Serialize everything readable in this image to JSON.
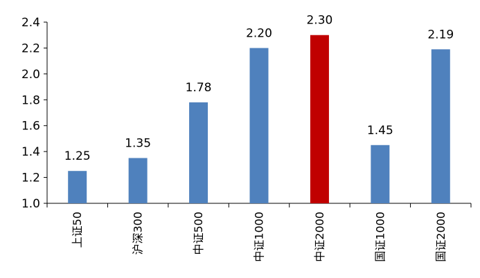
{
  "chart_data": {
    "type": "bar",
    "title": "",
    "xlabel": "",
    "ylabel": "",
    "categories": [
      "上证50",
      "沪深300",
      "中证500",
      "中证1000",
      "中证2000",
      "国证1000",
      "国证2000"
    ],
    "values": [
      1.25,
      1.35,
      1.78,
      2.2,
      2.3,
      1.45,
      2.19
    ],
    "data_labels": [
      "1.25",
      "1.35",
      "1.78",
      "2.20",
      "2.30",
      "1.45",
      "2.19"
    ],
    "ylim": [
      1.0,
      2.4
    ],
    "yticks": [
      1.0,
      1.2,
      1.4,
      1.6,
      1.8,
      2.0,
      2.2,
      2.4
    ],
    "ytick_labels": [
      "1.0",
      "1.2",
      "1.4",
      "1.6",
      "1.8",
      "2.0",
      "2.2",
      "2.4"
    ],
    "grid": false,
    "legend": "none",
    "colors": {
      "default_bar": "#4F81BD",
      "highlight_bar": "#C00000",
      "axis": "#000000"
    },
    "highlight_index": 4
  }
}
